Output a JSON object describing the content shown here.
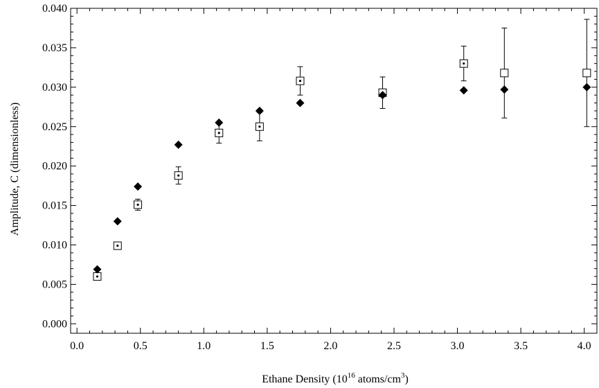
{
  "chart_data": {
    "type": "scatter",
    "title": "",
    "xlabel_parts": [
      "Ethane Density (10",
      "16",
      " atoms/cm",
      "3",
      ")"
    ],
    "ylabel": "Amplitude, C (dimensionless)",
    "xlim": [
      -0.05,
      4.1
    ],
    "ylim": [
      -0.0012,
      0.04
    ],
    "xticks": [
      0.0,
      0.5,
      1.0,
      1.5,
      2.0,
      2.5,
      3.0,
      3.5,
      4.0
    ],
    "xtick_labels": [
      "0.0",
      "0.5",
      "1.0",
      "1.5",
      "2.0",
      "2.5",
      "3.0",
      "3.5",
      "4.0"
    ],
    "yticks": [
      0.0,
      0.005,
      0.01,
      0.015,
      0.02,
      0.025,
      0.03,
      0.035,
      0.04
    ],
    "ytick_labels": [
      "0.000",
      "0.005",
      "0.010",
      "0.015",
      "0.020",
      "0.025",
      "0.030",
      "0.035",
      "0.040"
    ],
    "grid": false,
    "series": [
      {
        "marker": "open-square-with-dot",
        "color": "#000000",
        "x": [
          0.16,
          0.32,
          0.48,
          0.8,
          1.12,
          1.44,
          1.76,
          2.41,
          3.05,
          3.37,
          4.02
        ],
        "y": [
          0.006,
          0.0099,
          0.0151,
          0.0188,
          0.0242,
          0.025,
          0.0308,
          0.0293,
          0.033,
          0.0318,
          0.0318
        ],
        "err": [
          0.0004,
          0.0003,
          0.0007,
          0.0011,
          0.0013,
          0.0018,
          0.0018,
          0.002,
          0.0022,
          0.0057,
          0.0068
        ],
        "dot": [
          true,
          true,
          true,
          true,
          true,
          true,
          true,
          true,
          true,
          false,
          false
        ]
      },
      {
        "marker": "filled-diamond",
        "color": "#000000",
        "x": [
          0.16,
          0.32,
          0.48,
          0.8,
          1.12,
          1.44,
          1.76,
          2.41,
          3.05,
          3.37,
          4.02
        ],
        "y": [
          0.0069,
          0.013,
          0.0174,
          0.0227,
          0.0255,
          0.027,
          0.028,
          0.029,
          0.0296,
          0.0297,
          0.03
        ]
      }
    ]
  }
}
